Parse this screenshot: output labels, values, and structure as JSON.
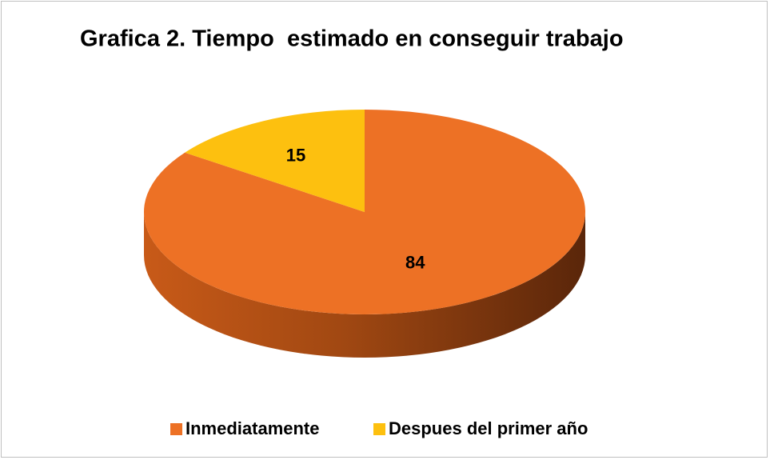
{
  "chart_data": {
    "type": "pie",
    "title": "Grafica 2. Tiempo  estimado en conseguir trabajo",
    "categories": [
      "Inmediatamente",
      "Despues del primer año"
    ],
    "values": [
      84,
      15
    ],
    "colors": [
      "#ed7125",
      "#fdc00f"
    ],
    "legend": "bottom"
  }
}
